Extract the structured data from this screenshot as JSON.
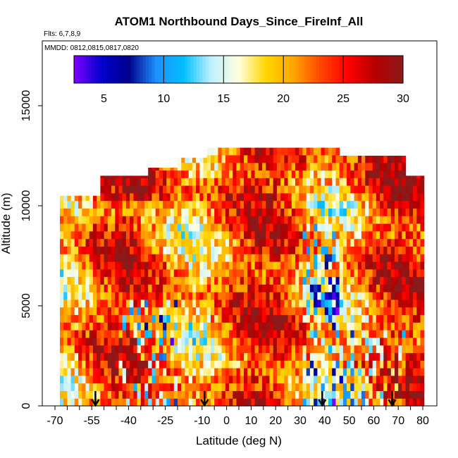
{
  "chart_data": {
    "type": "heatmap",
    "title": "ATOM1 Northbound Days_Since_FireInf_All",
    "flights_note": "Flts: 6,7,8,9",
    "dates_note": "MMDD: 0812,0815,0817,0820",
    "xlabel": "Latitude (deg N)",
    "ylabel": "Altitude (m)",
    "xlim": [
      -70,
      83
    ],
    "ylim": [
      0,
      17500
    ],
    "x_ticks": [
      -70,
      -55,
      -40,
      -25,
      -10,
      0,
      10,
      20,
      30,
      40,
      50,
      60,
      70,
      80
    ],
    "y_ticks": [
      0,
      5000,
      10000,
      15000
    ],
    "colorbar": {
      "range": [
        2.5,
        30
      ],
      "ticks": [
        5,
        10,
        15,
        20,
        25,
        30
      ],
      "colors": [
        "#7f00ff",
        "#0000cd",
        "#00008b",
        "#1e90ff",
        "#00bfff",
        "#bfefff",
        "#ffffe0",
        "#ffd700",
        "#ffa500",
        "#ff4500",
        "#ff0000",
        "#b40000",
        "#8b1a1a"
      ]
    },
    "profile_markers_lat": [
      -53.5,
      -9.0,
      39.0,
      67.5
    ],
    "grid": false
  }
}
